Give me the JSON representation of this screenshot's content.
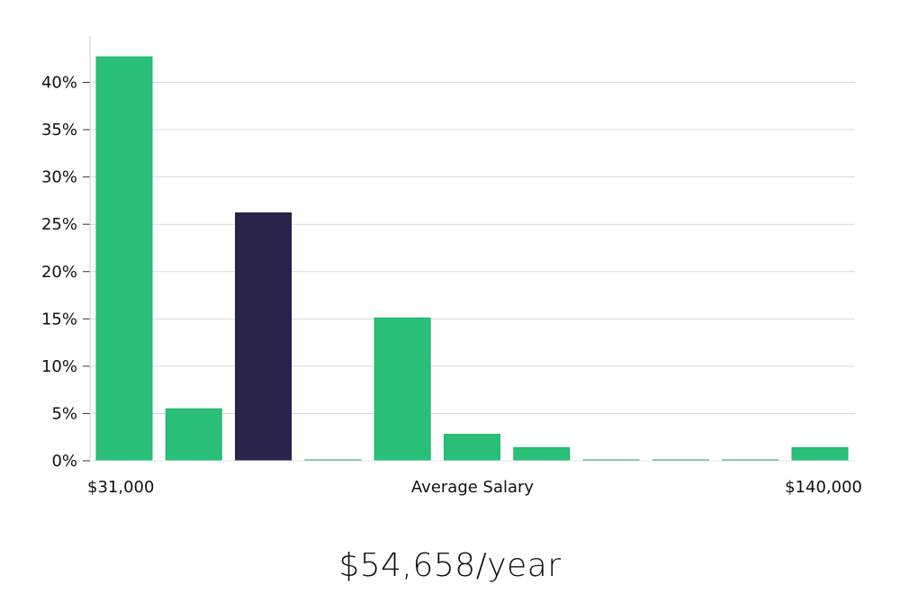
{
  "chart_data": {
    "type": "bar",
    "values": [
      42.7,
      5.5,
      26.2,
      0.1,
      15.1,
      2.8,
      1.4,
      0.1,
      0.1,
      0.1,
      1.4
    ],
    "highlight_index": 2,
    "ylim": [
      0,
      45
    ],
    "yticks": [
      0,
      5,
      10,
      15,
      20,
      25,
      30,
      35,
      40
    ],
    "ytick_labels": [
      "0%",
      "5%",
      "10%",
      "15%",
      "20%",
      "25%",
      "30%",
      "35%",
      "40%"
    ],
    "xlabel_left": "$31,000",
    "xlabel_center": "Average Salary",
    "xlabel_right": "$140,000",
    "grid": true,
    "colors": {
      "bar": "#29bf77",
      "highlight": "#28254a",
      "grid": "#d9d9d9",
      "axis": "#cccccc"
    }
  },
  "summary": "$54,658/year"
}
